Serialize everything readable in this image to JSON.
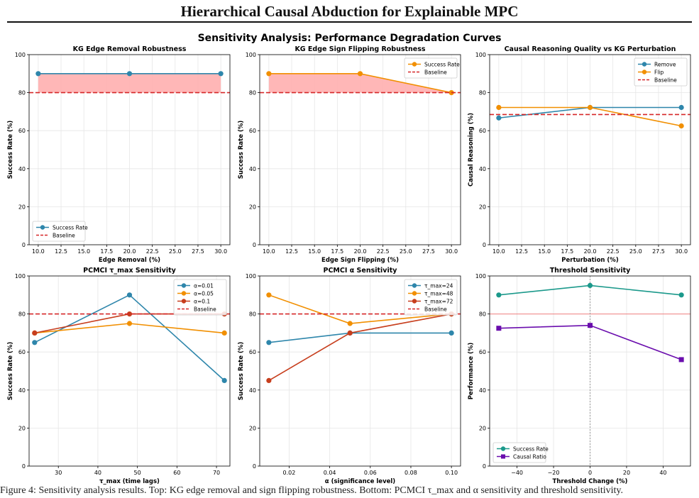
{
  "header": {
    "paper_title": "Hierarchical Causal Abduction for Explainable MPC",
    "figure_title": "Sensitivity Analysis: Performance Degradation Curves"
  },
  "colors": {
    "blue": "#2e86ab",
    "orange": "#f18f01",
    "red": "#c73e1d",
    "green": "#1b998b",
    "purple": "#6a0dad",
    "baseline": "#d62728",
    "fill": "#ffb3b3"
  },
  "chart_data": [
    {
      "type": "line",
      "title": "KG Edge Removal Robustness",
      "xlabel": "Edge Removal (%)",
      "ylabel": "Success Rate (%)",
      "xlim": [
        9,
        31
      ],
      "ylim": [
        0,
        100
      ],
      "xticks": [
        "10.0",
        "12.5",
        "15.0",
        "17.5",
        "20.0",
        "22.5",
        "25.0",
        "27.5",
        "30.0"
      ],
      "yticks": [
        "0",
        "20",
        "40",
        "60",
        "80",
        "100"
      ],
      "grid": true,
      "legend": "lower-left",
      "series": [
        {
          "name": "Success Rate",
          "x": [
            10,
            20,
            30
          ],
          "values": [
            90,
            90,
            90
          ],
          "color": "#2e86ab",
          "marker": "circle"
        }
      ],
      "baseline": {
        "name": "Baseline",
        "value": 80,
        "color": "#d62728"
      },
      "fill_between_baseline": true
    },
    {
      "type": "line",
      "title": "KG Edge Sign Flipping Robustness",
      "xlabel": "Edge Sign Flipping (%)",
      "ylabel": "Success Rate (%)",
      "xlim": [
        9,
        31
      ],
      "ylim": [
        0,
        100
      ],
      "xticks": [
        "10.0",
        "12.5",
        "15.0",
        "17.5",
        "20.0",
        "22.5",
        "25.0",
        "27.5",
        "30.0"
      ],
      "yticks": [
        "0",
        "20",
        "40",
        "60",
        "80",
        "100"
      ],
      "grid": true,
      "legend": "upper-right",
      "series": [
        {
          "name": "Success Rate",
          "x": [
            10,
            20,
            30
          ],
          "values": [
            90,
            90,
            80
          ],
          "color": "#f18f01",
          "marker": "circle"
        }
      ],
      "baseline": {
        "name": "Baseline",
        "value": 80,
        "color": "#d62728"
      },
      "fill_between_baseline": true
    },
    {
      "type": "line",
      "title": "Causal Reasoning Quality vs KG Perturbation",
      "xlabel": "Perturbation (%)",
      "ylabel": "Causal Reasoning (%)",
      "xlim": [
        9,
        31
      ],
      "ylim": [
        0,
        100
      ],
      "xticks": [
        "10.0",
        "12.5",
        "15.0",
        "17.5",
        "20.0",
        "22.5",
        "25.0",
        "27.5",
        "30.0"
      ],
      "yticks": [
        "0",
        "20",
        "40",
        "60",
        "80",
        "100"
      ],
      "grid": true,
      "legend": "upper-right",
      "series": [
        {
          "name": "Remove",
          "x": [
            10,
            20,
            30
          ],
          "values": [
            66.7,
            72.2,
            72.2
          ],
          "color": "#2e86ab",
          "marker": "circle"
        },
        {
          "name": "Flip",
          "x": [
            10,
            20,
            30
          ],
          "values": [
            72.2,
            72.2,
            62.5
          ],
          "color": "#f18f01",
          "marker": "circle"
        }
      ],
      "baseline": {
        "name": "Baseline",
        "value": 68.5,
        "color": "#d62728"
      }
    },
    {
      "type": "line",
      "title": "PCMCI τ_max Sensitivity",
      "xlabel": "τ_max (time lags)",
      "ylabel": "Success Rate (%)",
      "xlim": [
        22.6,
        73.4
      ],
      "ylim": [
        0,
        100
      ],
      "xticks": [
        "30",
        "40",
        "50",
        "60",
        "70"
      ],
      "yticks": [
        "0",
        "20",
        "40",
        "60",
        "80",
        "100"
      ],
      "grid": true,
      "legend": "upper-right",
      "series": [
        {
          "name": "α=0.01",
          "x": [
            24,
            48,
            72
          ],
          "values": [
            65,
            90,
            45
          ],
          "color": "#2e86ab",
          "marker": "circle"
        },
        {
          "name": "α=0.05",
          "x": [
            24,
            48,
            72
          ],
          "values": [
            70,
            75,
            70
          ],
          "color": "#f18f01",
          "marker": "circle"
        },
        {
          "name": "α=0.1",
          "x": [
            24,
            48,
            72
          ],
          "values": [
            70,
            80,
            80
          ],
          "color": "#c73e1d",
          "marker": "circle"
        }
      ],
      "baseline": {
        "name": "Baseline",
        "value": 80,
        "color": "#d62728"
      }
    },
    {
      "type": "line",
      "title": "PCMCI α Sensitivity",
      "xlabel": "α (significance level)",
      "ylabel": "Success Rate (%)",
      "xlim": [
        0.0055,
        0.1045
      ],
      "ylim": [
        0,
        100
      ],
      "xticks": [
        "0.02",
        "0.04",
        "0.06",
        "0.08",
        "0.10"
      ],
      "yticks": [
        "0",
        "20",
        "40",
        "60",
        "80",
        "100"
      ],
      "grid": true,
      "legend": "upper-right",
      "series": [
        {
          "name": "τ_max=24",
          "x": [
            0.01,
            0.05,
            0.1
          ],
          "values": [
            65,
            70,
            70
          ],
          "color": "#2e86ab",
          "marker": "circle"
        },
        {
          "name": "τ_max=48",
          "x": [
            0.01,
            0.05,
            0.1
          ],
          "values": [
            90,
            75,
            80
          ],
          "color": "#f18f01",
          "marker": "circle"
        },
        {
          "name": "τ_max=72",
          "x": [
            0.01,
            0.05,
            0.1
          ],
          "values": [
            45,
            70,
            80
          ],
          "color": "#c73e1d",
          "marker": "circle"
        }
      ],
      "baseline": {
        "name": "Baseline",
        "value": 80,
        "color": "#d62728"
      }
    },
    {
      "type": "line",
      "title": "Threshold Sensitivity",
      "xlabel": "Threshold Change (%)",
      "ylabel": "Performance (%)",
      "xlim": [
        -55,
        55
      ],
      "ylim": [
        0,
        100
      ],
      "xticks": [
        "−40",
        "−20",
        "0",
        "20",
        "40"
      ],
      "yticks": [
        "0",
        "20",
        "40",
        "60",
        "80",
        "100"
      ],
      "grid": true,
      "legend": "lower-left",
      "series": [
        {
          "name": "Success Rate",
          "x": [
            -50,
            0,
            50
          ],
          "values": [
            90,
            95,
            90
          ],
          "color": "#1b998b",
          "marker": "circle"
        },
        {
          "name": "Causal Ratio",
          "x": [
            -50,
            0,
            50
          ],
          "values": [
            72.5,
            74,
            56
          ],
          "color": "#6a0dad",
          "marker": "square"
        }
      ],
      "reference_hline": 80,
      "reference_vline": 0
    }
  ],
  "caption": "Figure 4: Sensitivity analysis results. Top: KG edge removal and sign flipping robustness. Bottom: PCMCI τ_max and α sensitivity and threshold sensitivity."
}
